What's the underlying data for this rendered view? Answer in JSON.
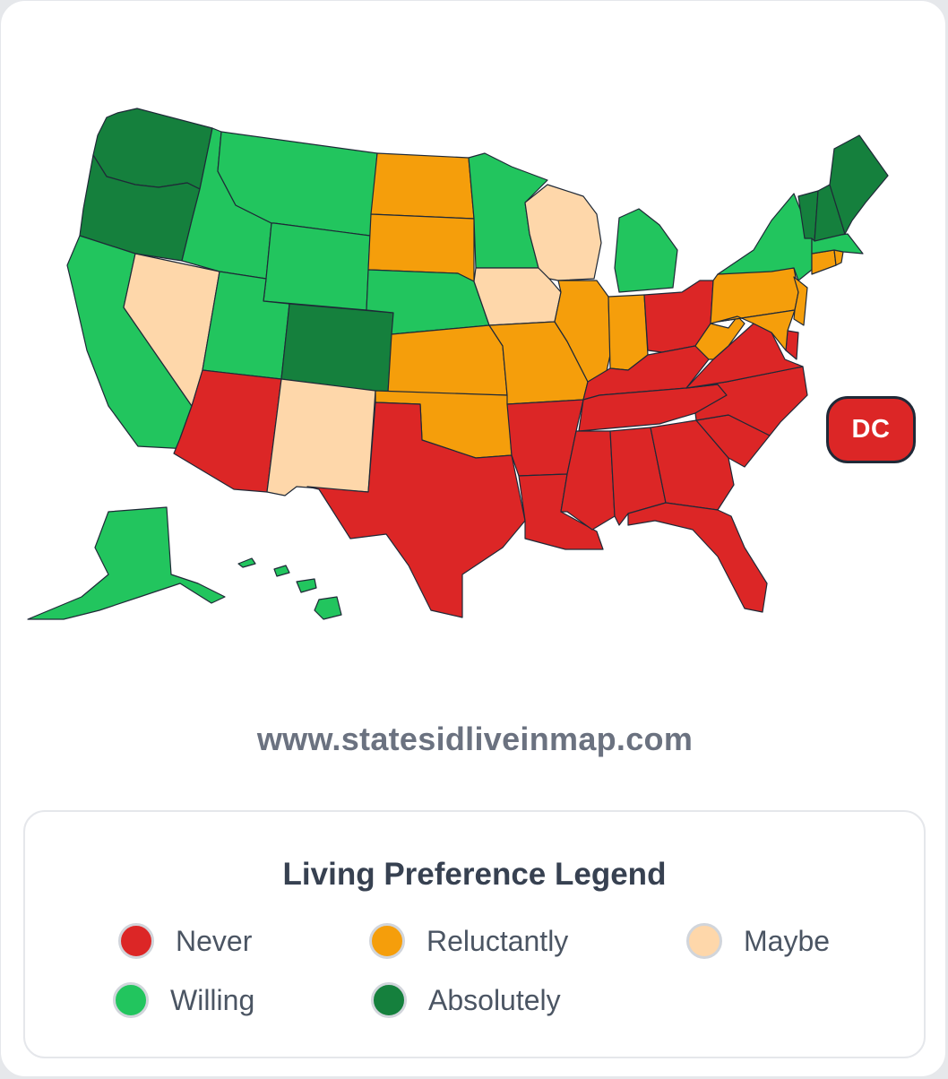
{
  "colors": {
    "never": "#dc2626",
    "reluctantly": "#f59e0b",
    "maybe": "#fed7aa",
    "willing": "#22c55e",
    "absolutely": "#15803d",
    "stroke": "#1f2937"
  },
  "dc_badge": {
    "label": "DC",
    "category": "never"
  },
  "site_url": "www.statesidliveinmap.com",
  "legend": {
    "title": "Living Preference Legend",
    "items": [
      {
        "label": "Never",
        "category": "never"
      },
      {
        "label": "Reluctantly",
        "category": "reluctantly"
      },
      {
        "label": "Maybe",
        "category": "maybe"
      },
      {
        "label": "Willing",
        "category": "willing"
      },
      {
        "label": "Absolutely",
        "category": "absolutely"
      }
    ]
  },
  "states": {
    "WA": "absolutely",
    "OR": "absolutely",
    "CO": "absolutely",
    "VT": "absolutely",
    "NH": "absolutely",
    "ME": "absolutely",
    "CA": "willing",
    "ID": "willing",
    "MT": "willing",
    "WY": "willing",
    "UT": "willing",
    "NE": "willing",
    "MN": "willing",
    "MI": "willing",
    "NY": "willing",
    "MA": "willing",
    "AK": "willing",
    "HI": "willing",
    "NV": "maybe",
    "NM": "maybe",
    "IA": "maybe",
    "WI": "maybe",
    "ND": "reluctantly",
    "SD": "reluctantly",
    "KS": "reluctantly",
    "OK": "reluctantly",
    "MO": "reluctantly",
    "IL": "reluctantly",
    "IN": "reluctantly",
    "PA": "reluctantly",
    "NJ": "reluctantly",
    "WV": "reluctantly",
    "CT": "reluctantly",
    "RI": "reluctantly",
    "MD": "reluctantly",
    "AZ": "never",
    "TX": "never",
    "AR": "never",
    "LA": "never",
    "MS": "never",
    "AL": "never",
    "GA": "never",
    "FL": "never",
    "SC": "never",
    "NC": "never",
    "TN": "never",
    "KY": "never",
    "VA": "never",
    "OH": "never",
    "DE": "never"
  }
}
